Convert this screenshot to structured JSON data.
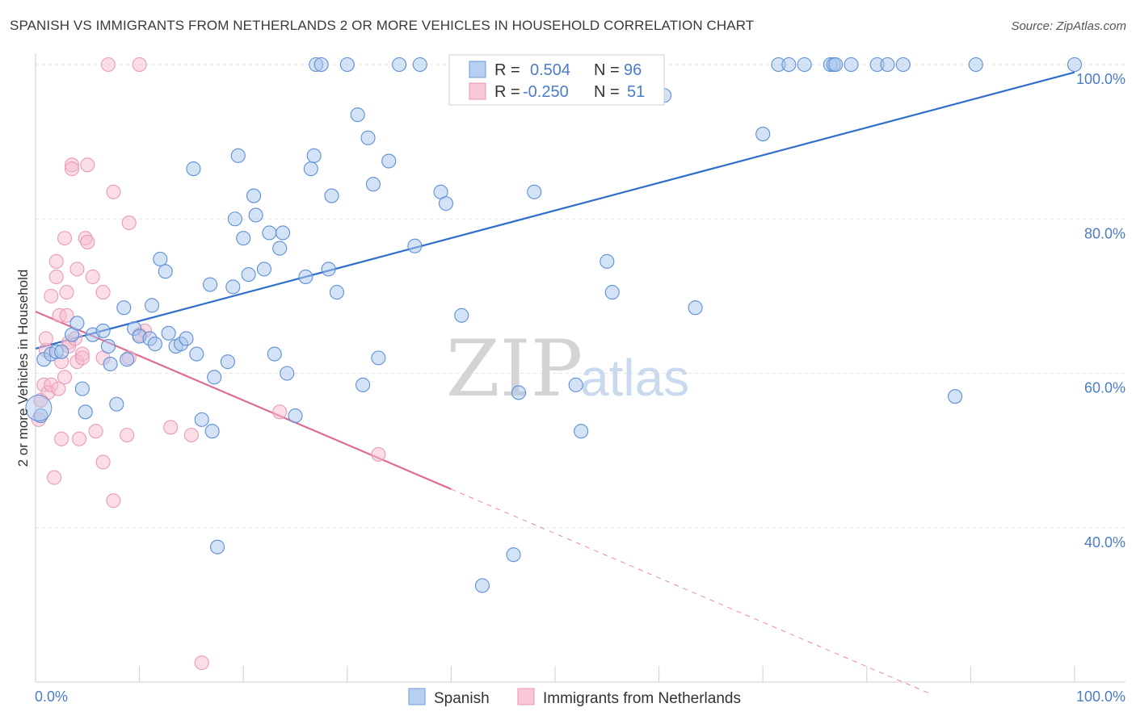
{
  "title": "SPANISH VS IMMIGRANTS FROM NETHERLANDS 2 OR MORE VEHICLES IN HOUSEHOLD CORRELATION CHART",
  "source": "Source: ZipAtlas.com",
  "watermark": {
    "zip": "ZIP",
    "atlas": "atlas"
  },
  "colors": {
    "blue": "#4a7cc7",
    "blue_fill": "#a9c5ec",
    "blue_line": "#2f6fc9",
    "pink_fill": "#f6bccd",
    "pink_line": "#e06b97",
    "grid": "#e3e3e3"
  },
  "legend": {
    "rows": [
      {
        "r_label": "R =",
        "r_value": "0.504",
        "n_label": "N =",
        "n_value": "96"
      },
      {
        "r_label": "R =",
        "r_value": "-0.250",
        "n_label": "N =",
        "n_value": "51"
      }
    ]
  },
  "bottom_legend": [
    "Spanish",
    "Immigrants from Netherlands"
  ],
  "chart_data": {
    "type": "scatter",
    "xlabel": "",
    "ylabel": "2 or more Vehicles in Household",
    "xlim": [
      0,
      100
    ],
    "ylim": [
      20,
      100
    ],
    "x_tick_labels": [
      "0.0%",
      "100.0%"
    ],
    "y_tick_labels": [
      "40.0%",
      "60.0%",
      "80.0%",
      "100.0%"
    ],
    "y_ticks": [
      40,
      60,
      80,
      100
    ],
    "grid": true,
    "legend_position": "top-center",
    "series": [
      {
        "name": "Spanish",
        "r": 0.504,
        "n": 96,
        "trend": {
          "x": [
            0,
            100
          ],
          "y": [
            63.2,
            99.0
          ],
          "dashed_x": []
        },
        "points": [
          [
            0.5,
            54.5
          ],
          [
            0.8,
            61.8
          ],
          [
            1.5,
            62.5
          ],
          [
            2.0,
            62.8
          ],
          [
            2.5,
            62.8
          ],
          [
            3.5,
            65.0
          ],
          [
            4.0,
            66.5
          ],
          [
            4.5,
            58.0
          ],
          [
            4.8,
            55.0
          ],
          [
            5.5,
            65.0
          ],
          [
            6.5,
            65.5
          ],
          [
            7.0,
            63.5
          ],
          [
            7.2,
            61.2
          ],
          [
            7.8,
            56.0
          ],
          [
            8.5,
            68.5
          ],
          [
            8.8,
            61.8
          ],
          [
            9.5,
            65.8
          ],
          [
            10.0,
            64.8
          ],
          [
            11.0,
            64.5
          ],
          [
            11.2,
            68.8
          ],
          [
            11.5,
            63.8
          ],
          [
            12.0,
            74.8
          ],
          [
            12.5,
            73.2
          ],
          [
            12.8,
            65.2
          ],
          [
            13.5,
            63.5
          ],
          [
            14.0,
            63.8
          ],
          [
            14.5,
            64.5
          ],
          [
            15.2,
            86.5
          ],
          [
            15.5,
            62.5
          ],
          [
            16.0,
            54.0
          ],
          [
            16.8,
            71.5
          ],
          [
            17.0,
            52.5
          ],
          [
            17.2,
            59.5
          ],
          [
            17.5,
            37.5
          ],
          [
            18.5,
            61.5
          ],
          [
            19.0,
            71.2
          ],
          [
            19.2,
            80.0
          ],
          [
            19.5,
            88.2
          ],
          [
            20.0,
            77.5
          ],
          [
            20.5,
            72.8
          ],
          [
            21.0,
            83.0
          ],
          [
            21.2,
            80.5
          ],
          [
            22.0,
            73.5
          ],
          [
            22.5,
            78.2
          ],
          [
            23.0,
            62.5
          ],
          [
            23.5,
            76.2
          ],
          [
            23.8,
            78.2
          ],
          [
            24.2,
            60.0
          ],
          [
            25.0,
            54.5
          ],
          [
            26.0,
            72.5
          ],
          [
            26.5,
            86.5
          ],
          [
            26.8,
            88.2
          ],
          [
            27.0,
            100.0
          ],
          [
            27.5,
            100.0
          ],
          [
            28.2,
            73.5
          ],
          [
            28.5,
            83.0
          ],
          [
            29.0,
            70.5
          ],
          [
            30.0,
            100.0
          ],
          [
            31.0,
            93.5
          ],
          [
            31.5,
            58.5
          ],
          [
            32.0,
            90.5
          ],
          [
            32.5,
            84.5
          ],
          [
            33.0,
            62.0
          ],
          [
            34.0,
            87.5
          ],
          [
            35.0,
            100.0
          ],
          [
            36.5,
            76.5
          ],
          [
            37.0,
            100.0
          ],
          [
            39.0,
            83.5
          ],
          [
            39.5,
            82.0
          ],
          [
            41.0,
            67.5
          ],
          [
            43.0,
            32.5
          ],
          [
            46.0,
            36.5
          ],
          [
            46.5,
            57.5
          ],
          [
            48.0,
            83.5
          ],
          [
            48.5,
            100.0
          ],
          [
            49.0,
            100.0
          ],
          [
            50.5,
            100.0
          ],
          [
            52.0,
            58.5
          ],
          [
            52.5,
            52.5
          ],
          [
            55.0,
            74.5
          ],
          [
            55.5,
            70.5
          ],
          [
            60.5,
            96.0
          ],
          [
            63.5,
            68.5
          ],
          [
            70.0,
            91.0
          ],
          [
            71.5,
            100.0
          ],
          [
            72.5,
            100.0
          ],
          [
            74.0,
            100.0
          ],
          [
            76.5,
            100.0
          ],
          [
            76.8,
            100.0
          ],
          [
            77.0,
            100.0
          ],
          [
            78.5,
            100.0
          ],
          [
            81.0,
            100.0
          ],
          [
            82.0,
            100.0
          ],
          [
            83.5,
            100.0
          ],
          [
            88.5,
            57.0
          ],
          [
            90.5,
            100.0
          ],
          [
            100.0,
            100.0
          ]
        ]
      },
      {
        "name": "Immigrants from Netherlands",
        "r": -0.25,
        "n": 51,
        "trend": {
          "x": [
            0,
            40
          ],
          "y": [
            68.0,
            45.0
          ],
          "dashed_x": [
            40,
            86
          ]
        },
        "points": [
          [
            0.3,
            54.0
          ],
          [
            0.5,
            56.5
          ],
          [
            0.8,
            58.5
          ],
          [
            1.0,
            63.0
          ],
          [
            1.0,
            64.5
          ],
          [
            1.2,
            57.5
          ],
          [
            1.5,
            58.5
          ],
          [
            1.5,
            70.0
          ],
          [
            1.8,
            46.5
          ],
          [
            2.0,
            74.5
          ],
          [
            2.0,
            72.5
          ],
          [
            2.2,
            58.0
          ],
          [
            2.3,
            67.5
          ],
          [
            2.5,
            61.5
          ],
          [
            2.5,
            51.5
          ],
          [
            2.8,
            77.5
          ],
          [
            2.8,
            59.5
          ],
          [
            3.0,
            70.5
          ],
          [
            3.0,
            67.5
          ],
          [
            3.2,
            64.0
          ],
          [
            3.2,
            63.5
          ],
          [
            3.5,
            87.0
          ],
          [
            3.5,
            86.5
          ],
          [
            3.8,
            64.5
          ],
          [
            4.0,
            73.5
          ],
          [
            4.0,
            61.5
          ],
          [
            4.2,
            51.5
          ],
          [
            4.5,
            62.5
          ],
          [
            4.5,
            62.0
          ],
          [
            4.8,
            77.5
          ],
          [
            5.0,
            87.0
          ],
          [
            5.0,
            77.0
          ],
          [
            5.5,
            72.5
          ],
          [
            5.8,
            52.5
          ],
          [
            6.5,
            62.0
          ],
          [
            6.5,
            70.5
          ],
          [
            6.5,
            48.5
          ],
          [
            7.0,
            100.0
          ],
          [
            7.5,
            43.5
          ],
          [
            7.5,
            83.5
          ],
          [
            8.8,
            52.0
          ],
          [
            9.0,
            62.0
          ],
          [
            9.0,
            79.5
          ],
          [
            10.0,
            65.0
          ],
          [
            10.0,
            100.0
          ],
          [
            10.5,
            65.5
          ],
          [
            13.0,
            53.0
          ],
          [
            15.0,
            52.0
          ],
          [
            16.0,
            22.5
          ],
          [
            23.5,
            55.0
          ],
          [
            33.0,
            49.5
          ]
        ]
      }
    ]
  }
}
